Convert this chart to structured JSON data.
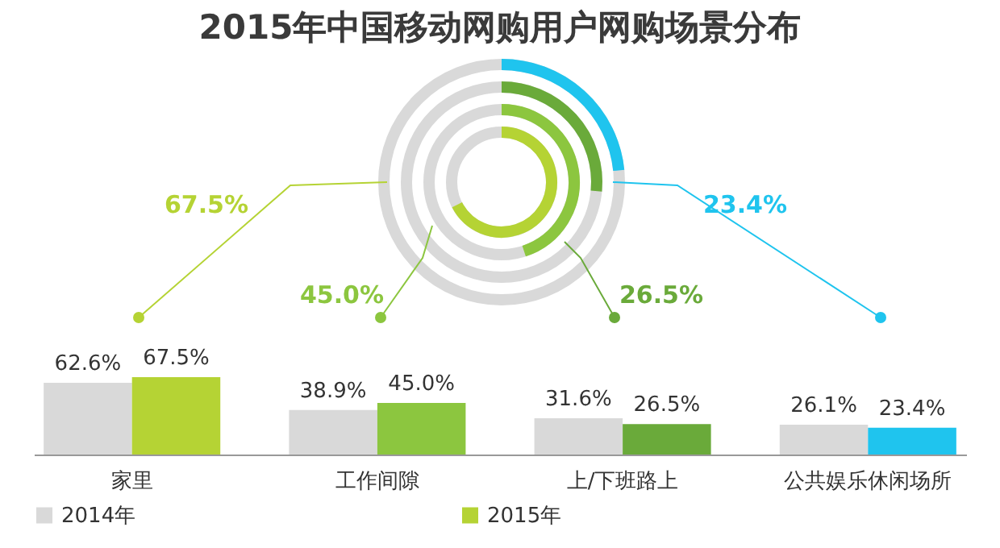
{
  "chart_data": {
    "type": "bar",
    "title": "2015年中国移动网购用户网购场景分布",
    "categories": [
      "家里",
      "工作间隙",
      "上/下班路上",
      "公共娱乐休闲场所"
    ],
    "series": [
      {
        "name": "2014年",
        "color": "#d9d9d9",
        "values": [
          62.6,
          38.9,
          31.6,
          26.1
        ],
        "value_labels": [
          "62.6%",
          "38.9%",
          "31.6%",
          "26.1%"
        ]
      },
      {
        "name": "2015年",
        "color": "#b5d334",
        "colors": [
          "#b5d334",
          "#8cc63f",
          "#6aaa3a",
          "#1fc4ee"
        ],
        "values": [
          67.5,
          45.0,
          26.5,
          23.4
        ],
        "value_labels": [
          "67.5%",
          "45.0%",
          "26.5%",
          "23.4%"
        ]
      }
    ],
    "annotations": [
      "67.5%",
      "45.0%",
      "26.5%",
      "23.4%"
    ],
    "legend": "bottom"
  }
}
